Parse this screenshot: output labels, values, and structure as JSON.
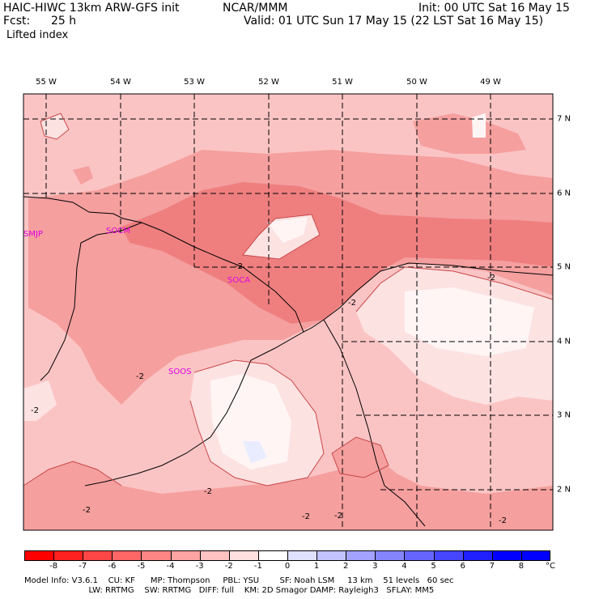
{
  "header": {
    "model_title": "HAIC-HIWC 13km ARW-GFS init",
    "org": "NCAR/MMM",
    "init": "Init: 00 UTC Sat 16 May 15",
    "fcst_label": "Fcst:",
    "fcst_value": "25 h",
    "valid": "Valid: 01 UTC Sun 17 May 15 (22 LST Sat 16 May 15)",
    "field": "Lifted index"
  },
  "map": {
    "lon_labels": [
      "55 W",
      "54 W",
      "53 W",
      "52 W",
      "51 W",
      "50 W",
      "49 W"
    ],
    "lat_labels": [
      "7 N",
      "6 N",
      "5 N",
      "4 N",
      "3 N",
      "2 N"
    ],
    "stations": [
      "SMJP",
      "SOCM",
      "SOCA",
      "SOOS"
    ],
    "contour_label": "-2",
    "colors": {
      "stations": "#e000e0",
      "background": "#fbc4c4",
      "medium": "#f59f9f",
      "strong": "#ef7f7f",
      "light": "#fde2e2",
      "white": "#fff5f5",
      "blue": "#e9ecff"
    }
  },
  "colorbar": {
    "unit": "°C",
    "ticks": [
      "-8",
      "-7",
      "-6",
      "-5",
      "-4",
      "-3",
      "-2",
      "-1",
      "0",
      "1",
      "2",
      "3",
      "4",
      "5",
      "6",
      "7",
      "8"
    ],
    "colors": [
      "#ff0000",
      "#ff2020",
      "#ff4646",
      "#ff6666",
      "#ff8585",
      "#ffa3a3",
      "#ffc2c2",
      "#ffe0e0",
      "#ffffff",
      "#e0e0ff",
      "#c2c2ff",
      "#a3a3ff",
      "#8585ff",
      "#6666ff",
      "#4646ff",
      "#2020ff",
      "#0000ff"
    ]
  },
  "model_info": {
    "line1": "Model Info: V3.6.1    CU: KF      MP: Thompson     PBL: YSU        SF: Noah LSM     13 km    51 levels   60 sec",
    "line2": "                         LW: RRTMG    SW: RRTMG   DIFF: full    KM: 2D Smagor DAMP: Rayleigh3   SFLAY: MM5"
  }
}
